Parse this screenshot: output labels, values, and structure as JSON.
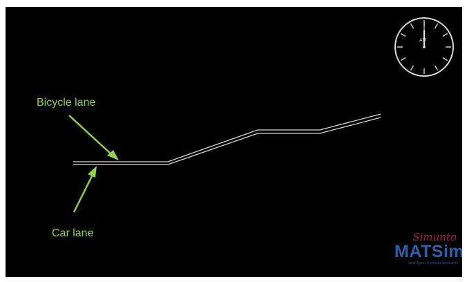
{
  "annotations": {
    "bicycle_lane": "Bicycle lane",
    "car_lane": "Car lane"
  },
  "clock": {
    "period_label": "AM"
  },
  "branding": {
    "vendor": "Simunto",
    "product": "MATSim",
    "tagline": "Multi-Agent Transport Simulation"
  },
  "colors": {
    "background": "#000000",
    "lane": "#d9d9d9",
    "annotation": "#92d050",
    "vendor": "#a0205a",
    "product": "#2e5fa8"
  }
}
